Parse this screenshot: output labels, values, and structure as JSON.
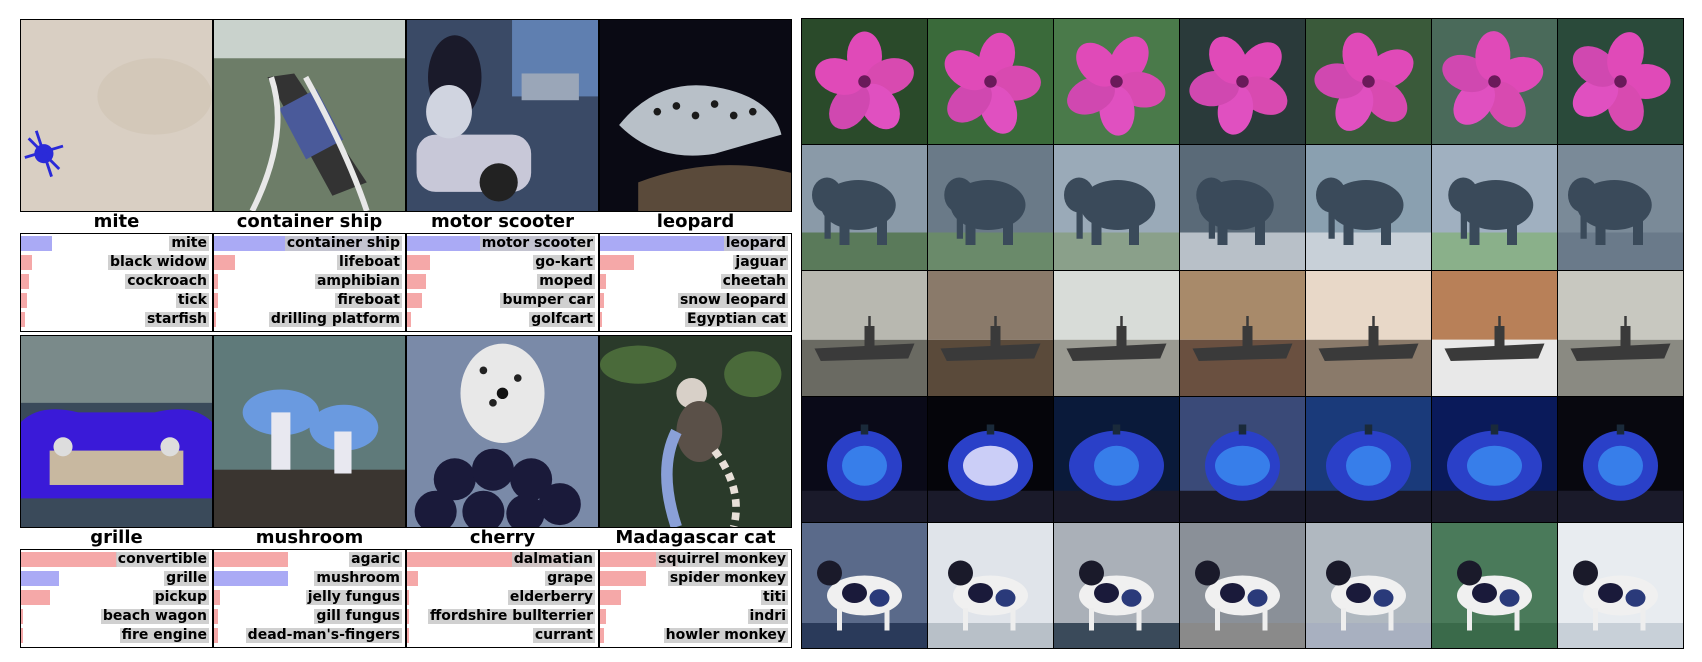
{
  "classification": {
    "cells": [
      {
        "title": "mite",
        "correct_index": 0,
        "predictions": [
          {
            "label": "mite",
            "prob": 0.16
          },
          {
            "label": "black widow",
            "prob": 0.06
          },
          {
            "label": "cockroach",
            "prob": 0.04
          },
          {
            "label": "tick",
            "prob": 0.03
          },
          {
            "label": "starfish",
            "prob": 0.02
          }
        ]
      },
      {
        "title": "container ship",
        "correct_index": 0,
        "predictions": [
          {
            "label": "container ship",
            "prob": 0.9
          },
          {
            "label": "lifeboat",
            "prob": 0.11
          },
          {
            "label": "amphibian",
            "prob": 0.02
          },
          {
            "label": "fireboat",
            "prob": 0.02
          },
          {
            "label": "drilling platform",
            "prob": 0.01
          }
        ]
      },
      {
        "title": "motor scooter",
        "correct_index": 0,
        "predictions": [
          {
            "label": "motor scooter",
            "prob": 0.88
          },
          {
            "label": "go-kart",
            "prob": 0.12
          },
          {
            "label": "moped",
            "prob": 0.1
          },
          {
            "label": "bumper car",
            "prob": 0.08
          },
          {
            "label": "golfcart",
            "prob": 0.02
          }
        ]
      },
      {
        "title": "leopard",
        "correct_index": 0,
        "predictions": [
          {
            "label": "leopard",
            "prob": 0.9
          },
          {
            "label": "jaguar",
            "prob": 0.18
          },
          {
            "label": "cheetah",
            "prob": 0.03
          },
          {
            "label": "snow leopard",
            "prob": 0.02
          },
          {
            "label": "Egyptian cat",
            "prob": 0.01
          }
        ]
      },
      {
        "title": "grille",
        "correct_index": 1,
        "predictions": [
          {
            "label": "convertible",
            "prob": 0.5
          },
          {
            "label": "grille",
            "prob": 0.2
          },
          {
            "label": "pickup",
            "prob": 0.15
          },
          {
            "label": "beach wagon",
            "prob": 0.01
          },
          {
            "label": "fire engine",
            "prob": 0.01
          }
        ]
      },
      {
        "title": "mushroom",
        "correct_index": 1,
        "predictions": [
          {
            "label": "agaric",
            "prob": 0.39
          },
          {
            "label": "mushroom",
            "prob": 0.39
          },
          {
            "label": "jelly fungus",
            "prob": 0.03
          },
          {
            "label": "gill fungus",
            "prob": 0.02
          },
          {
            "label": "dead-man's-fingers",
            "prob": 0.02
          }
        ]
      },
      {
        "title": "cherry",
        "correct_index": -1,
        "predictions": [
          {
            "label": "dalmatian",
            "prob": 0.86
          },
          {
            "label": "grape",
            "prob": 0.06
          },
          {
            "label": "elderberry",
            "prob": 0.01
          },
          {
            "label": "ffordshire bullterrier",
            "prob": 0.01
          },
          {
            "label": "currant",
            "prob": 0.01
          }
        ]
      },
      {
        "title": "Madagascar cat",
        "correct_index": -1,
        "predictions": [
          {
            "label": "squirrel monkey",
            "prob": 0.41
          },
          {
            "label": "spider monkey",
            "prob": 0.24
          },
          {
            "label": "titi",
            "prob": 0.11
          },
          {
            "label": "indri",
            "prob": 0.03
          },
          {
            "label": "howler monkey",
            "prob": 0.02
          }
        ]
      }
    ]
  },
  "neighbors": {
    "rows": [
      {
        "subject": "pink flower"
      },
      {
        "subject": "elephant"
      },
      {
        "subject": "aircraft carrier"
      },
      {
        "subject": "jack-o'-lantern"
      },
      {
        "subject": "black and white dog"
      }
    ],
    "images_per_row": 7
  },
  "colors": {
    "correct_bar": "#aaaaf5",
    "wrong_bar": "#f5a8a8",
    "label_bg": "#c8c8c8",
    "border": "#000000"
  }
}
